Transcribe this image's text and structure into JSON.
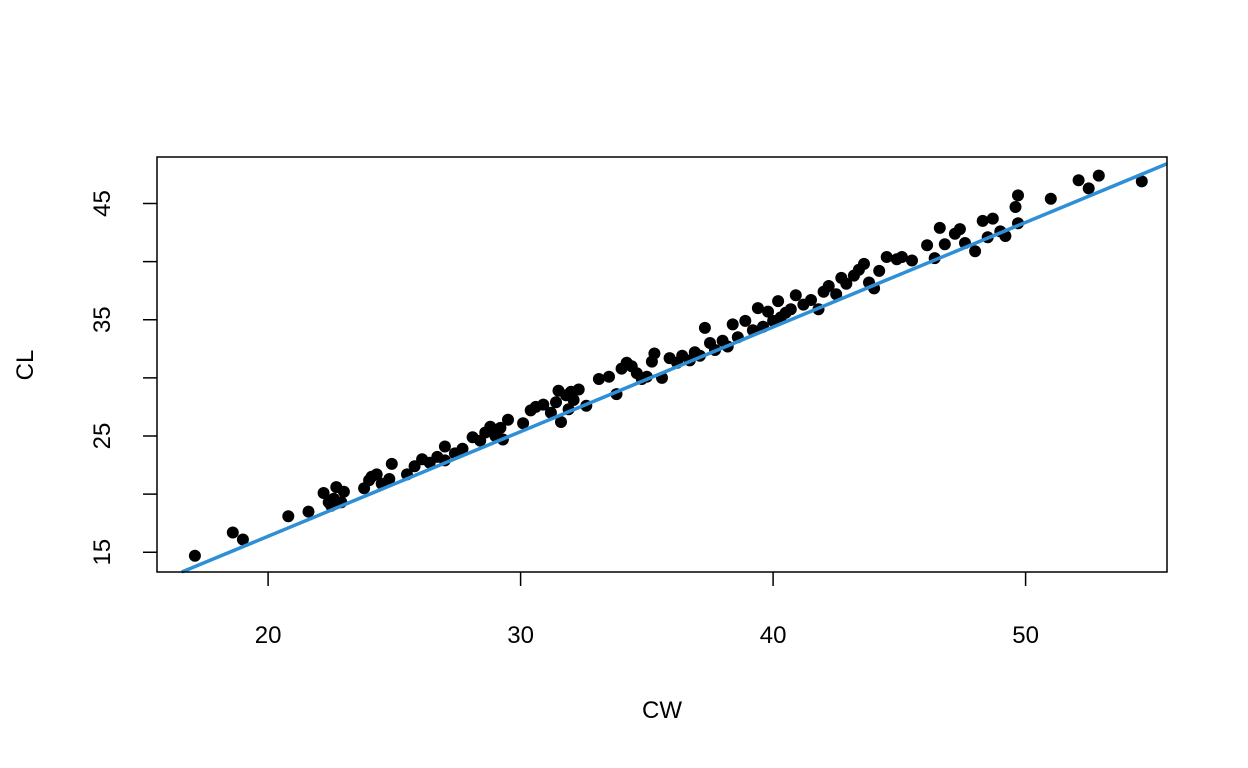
{
  "chart_data": {
    "type": "scatter",
    "title": "",
    "xlabel": "CW",
    "ylabel": "CL",
    "xlim": [
      15.6,
      55.6
    ],
    "ylim": [
      13.3,
      49.0
    ],
    "xticks": [
      20,
      30,
      40,
      50
    ],
    "yticks": [
      15,
      20,
      25,
      30,
      35,
      40,
      45
    ],
    "ytick_labels_shown": [
      15,
      25,
      35,
      45
    ],
    "grid": false,
    "point_color": "#000000",
    "line_color": "#2E8FD6",
    "regression_line": {
      "intercept": -1.624,
      "slope": 0.9
    },
    "points": [
      [
        17.1,
        14.7
      ],
      [
        18.6,
        16.7
      ],
      [
        19.0,
        16.1
      ],
      [
        20.8,
        18.1
      ],
      [
        21.6,
        18.5
      ],
      [
        22.2,
        20.1
      ],
      [
        22.4,
        19.3
      ],
      [
        22.5,
        19.0
      ],
      [
        22.6,
        19.6
      ],
      [
        22.7,
        20.6
      ],
      [
        22.9,
        19.3
      ],
      [
        23.0,
        20.2
      ],
      [
        23.8,
        20.5
      ],
      [
        24.0,
        21.2
      ],
      [
        24.1,
        21.5
      ],
      [
        24.3,
        21.7
      ],
      [
        24.5,
        20.9
      ],
      [
        24.8,
        21.3
      ],
      [
        24.9,
        22.6
      ],
      [
        25.5,
        21.7
      ],
      [
        25.8,
        22.4
      ],
      [
        26.1,
        23.0
      ],
      [
        26.4,
        22.7
      ],
      [
        26.7,
        23.2
      ],
      [
        27.0,
        22.9
      ],
      [
        27.0,
        24.1
      ],
      [
        27.4,
        23.5
      ],
      [
        27.7,
        23.9
      ],
      [
        28.1,
        24.9
      ],
      [
        28.4,
        24.6
      ],
      [
        28.6,
        25.3
      ],
      [
        28.8,
        25.8
      ],
      [
        29.0,
        25.0
      ],
      [
        29.2,
        25.7
      ],
      [
        29.3,
        24.7
      ],
      [
        29.5,
        26.4
      ],
      [
        30.1,
        26.1
      ],
      [
        30.4,
        27.2
      ],
      [
        30.6,
        27.5
      ],
      [
        30.9,
        27.7
      ],
      [
        31.2,
        27.0
      ],
      [
        31.4,
        27.9
      ],
      [
        31.5,
        28.9
      ],
      [
        31.6,
        26.2
      ],
      [
        31.8,
        28.5
      ],
      [
        31.9,
        27.3
      ],
      [
        32.0,
        28.8
      ],
      [
        32.1,
        28.1
      ],
      [
        32.3,
        29.0
      ],
      [
        32.6,
        27.6
      ],
      [
        33.1,
        29.9
      ],
      [
        33.5,
        30.1
      ],
      [
        33.8,
        28.6
      ],
      [
        34.0,
        30.8
      ],
      [
        34.2,
        31.3
      ],
      [
        34.4,
        31.0
      ],
      [
        34.6,
        30.4
      ],
      [
        34.8,
        29.9
      ],
      [
        35.0,
        30.1
      ],
      [
        35.2,
        31.4
      ],
      [
        35.3,
        32.1
      ],
      [
        35.6,
        30.0
      ],
      [
        35.9,
        31.7
      ],
      [
        36.2,
        31.3
      ],
      [
        36.4,
        31.9
      ],
      [
        36.7,
        31.5
      ],
      [
        36.9,
        32.2
      ],
      [
        37.1,
        31.9
      ],
      [
        37.3,
        34.3
      ],
      [
        37.5,
        33.0
      ],
      [
        37.7,
        32.4
      ],
      [
        38.0,
        33.2
      ],
      [
        38.2,
        32.7
      ],
      [
        38.4,
        34.6
      ],
      [
        38.6,
        33.5
      ],
      [
        38.9,
        34.9
      ],
      [
        39.2,
        34.1
      ],
      [
        39.4,
        36.0
      ],
      [
        39.6,
        34.4
      ],
      [
        39.8,
        35.7
      ],
      [
        40.0,
        34.9
      ],
      [
        40.2,
        36.6
      ],
      [
        40.3,
        35.2
      ],
      [
        40.5,
        35.6
      ],
      [
        40.7,
        35.9
      ],
      [
        40.9,
        37.1
      ],
      [
        41.2,
        36.3
      ],
      [
        41.5,
        36.7
      ],
      [
        41.8,
        35.9
      ],
      [
        42.0,
        37.4
      ],
      [
        42.2,
        37.9
      ],
      [
        42.5,
        37.2
      ],
      [
        42.7,
        38.6
      ],
      [
        42.9,
        38.1
      ],
      [
        43.2,
        38.8
      ],
      [
        43.4,
        39.3
      ],
      [
        43.6,
        39.8
      ],
      [
        43.8,
        38.2
      ],
      [
        44.0,
        37.7
      ],
      [
        44.2,
        39.2
      ],
      [
        44.5,
        40.4
      ],
      [
        44.9,
        40.2
      ],
      [
        45.1,
        40.4
      ],
      [
        45.5,
        40.1
      ],
      [
        46.1,
        41.4
      ],
      [
        46.4,
        40.3
      ],
      [
        46.6,
        42.9
      ],
      [
        46.8,
        41.5
      ],
      [
        47.2,
        42.4
      ],
      [
        47.4,
        42.8
      ],
      [
        47.6,
        41.6
      ],
      [
        48.0,
        40.9
      ],
      [
        48.3,
        43.5
      ],
      [
        48.5,
        42.1
      ],
      [
        48.7,
        43.7
      ],
      [
        49.0,
        42.6
      ],
      [
        49.2,
        42.2
      ],
      [
        49.6,
        44.7
      ],
      [
        49.7,
        45.7
      ],
      [
        49.7,
        43.3
      ],
      [
        51.0,
        45.4
      ],
      [
        52.1,
        47.0
      ],
      [
        52.5,
        46.3
      ],
      [
        52.9,
        47.4
      ],
      [
        54.6,
        46.9
      ]
    ]
  }
}
